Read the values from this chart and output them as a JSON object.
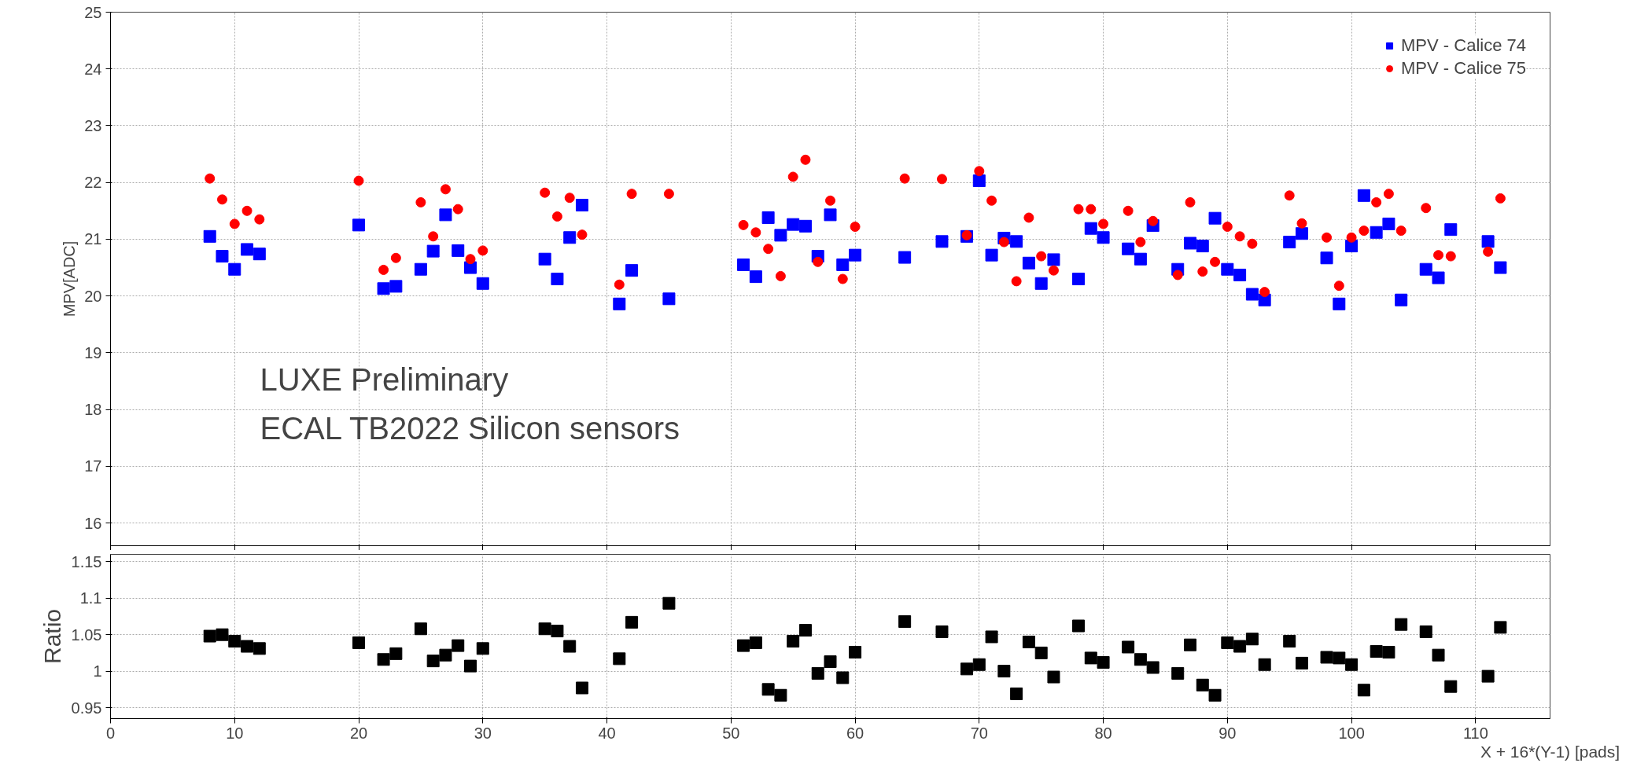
{
  "chart_data": [
    {
      "type": "scatter",
      "ylabel": "MPV[ADC]",
      "xlim": [
        0,
        116
      ],
      "xticks": [
        0,
        10,
        20,
        30,
        40,
        50,
        60,
        70,
        80,
        90,
        100,
        110
      ],
      "ylim": [
        15.6,
        25
      ],
      "yticks": [
        16,
        17,
        18,
        19,
        20,
        21,
        22,
        23,
        24,
        25
      ],
      "grid": true,
      "legend": "top right",
      "tick_labels": "y",
      "x": [
        8,
        9,
        10,
        11,
        12,
        20,
        22,
        23,
        25,
        26,
        27,
        28,
        29,
        30,
        35,
        36,
        37,
        38,
        41,
        42,
        45,
        51,
        52,
        53,
        54,
        55,
        56,
        57,
        58,
        59,
        60,
        64,
        67,
        69,
        70,
        71,
        72,
        73,
        74,
        75,
        76,
        78,
        79,
        80,
        82,
        83,
        84,
        86,
        87,
        88,
        89,
        90,
        91,
        92,
        93,
        95,
        96,
        98,
        99,
        100,
        101,
        102,
        103,
        104,
        106,
        107,
        108,
        111,
        112
      ],
      "annotations": [
        "LUXE Preliminary",
        "ECAL TB2022 Silicon sensors"
      ],
      "series": [
        {
          "name": "MPV - Calice 74",
          "color": "#0000ff",
          "marker": "square",
          "values": [
            21.05,
            20.7,
            20.47,
            20.82,
            20.74,
            21.25,
            20.13,
            20.17,
            20.47,
            20.79,
            21.43,
            20.8,
            20.5,
            20.22,
            20.65,
            20.3,
            21.03,
            21.6,
            19.86,
            20.45,
            19.95,
            20.55,
            20.34,
            21.38,
            21.07,
            21.26,
            21.23,
            20.7,
            21.43,
            20.55,
            20.72,
            20.68,
            20.96,
            21.05,
            22.03,
            20.72,
            21.02,
            20.96,
            20.58,
            20.22,
            20.64,
            20.3,
            21.19,
            21.03,
            20.83,
            20.65,
            21.24,
            20.47,
            20.93,
            20.88,
            21.37,
            20.47,
            20.37,
            20.03,
            19.93,
            20.95,
            21.1,
            20.67,
            19.86,
            20.88,
            21.77,
            21.12,
            21.27,
            19.93,
            20.47,
            20.32,
            21.17,
            20.96,
            20.5
          ]
        },
        {
          "name": "MPV - Calice 75",
          "color": "#ff0000",
          "marker": "circle",
          "values": [
            22.07,
            21.7,
            21.27,
            21.5,
            21.35,
            22.03,
            20.46,
            20.67,
            21.65,
            21.05,
            21.88,
            21.53,
            20.65,
            20.8,
            21.82,
            21.4,
            21.73,
            21.08,
            20.2,
            21.8,
            21.8,
            21.25,
            21.12,
            20.83,
            20.35,
            22.1,
            22.4,
            20.6,
            21.68,
            20.3,
            21.22,
            22.07,
            22.06,
            21.07,
            22.2,
            21.68,
            20.95,
            20.26,
            21.38,
            20.7,
            20.45,
            21.53,
            21.53,
            21.27,
            21.5,
            20.95,
            21.32,
            20.37,
            21.65,
            20.43,
            20.6,
            21.22,
            21.05,
            20.92,
            20.07,
            21.77,
            21.28,
            21.03,
            20.18,
            21.03,
            21.15,
            21.65,
            21.8,
            21.15,
            21.55,
            20.72,
            20.7,
            20.78,
            21.72
          ]
        }
      ]
    },
    {
      "type": "scatter",
      "ylabel": "Ratio",
      "xlabel": "X + 16*(Y-1) [pads]",
      "xlim": [
        0,
        116
      ],
      "xticks": [
        0,
        10,
        20,
        30,
        40,
        50,
        60,
        70,
        80,
        90,
        100,
        110
      ],
      "ylim": [
        0.935,
        1.16
      ],
      "yticks": [
        0.95,
        {
          "value": 1.0,
          "label": "1"
        },
        1.05,
        {
          "value": 1.1,
          "label": "1.1"
        },
        1.15
      ],
      "grid": true,
      "x": [
        8,
        9,
        10,
        11,
        12,
        20,
        22,
        23,
        25,
        26,
        27,
        28,
        29,
        30,
        35,
        36,
        37,
        38,
        41,
        42,
        45,
        51,
        52,
        53,
        54,
        55,
        56,
        57,
        58,
        59,
        60,
        64,
        67,
        69,
        70,
        71,
        72,
        73,
        74,
        75,
        76,
        78,
        79,
        80,
        82,
        83,
        84,
        86,
        87,
        88,
        89,
        90,
        91,
        92,
        93,
        95,
        96,
        98,
        99,
        100,
        101,
        102,
        103,
        104,
        106,
        107,
        108,
        111,
        112
      ],
      "series": [
        {
          "color": "#000000",
          "marker": "square",
          "values": [
            1.048,
            1.05,
            1.041,
            1.034,
            1.031,
            1.039,
            1.016,
            1.024,
            1.058,
            1.014,
            1.022,
            1.035,
            1.007,
            1.031,
            1.058,
            1.055,
            1.034,
            0.977,
            1.017,
            1.067,
            1.093,
            1.035,
            1.039,
            0.975,
            0.967,
            1.041,
            1.056,
            0.997,
            1.013,
            0.991,
            1.026,
            1.068,
            1.054,
            1.003,
            1.009,
            1.047,
            1.0,
            0.969,
            1.04,
            1.025,
            0.992,
            1.062,
            1.018,
            1.012,
            1.033,
            1.016,
            1.005,
            0.997,
            1.036,
            0.981,
            0.967,
            1.039,
            1.034,
            1.044,
            1.009,
            1.041,
            1.011,
            1.019,
            1.018,
            1.009,
            0.974,
            1.027,
            1.026,
            1.064,
            1.054,
            1.022,
            0.979,
            0.993,
            1.06
          ]
        }
      ]
    }
  ]
}
